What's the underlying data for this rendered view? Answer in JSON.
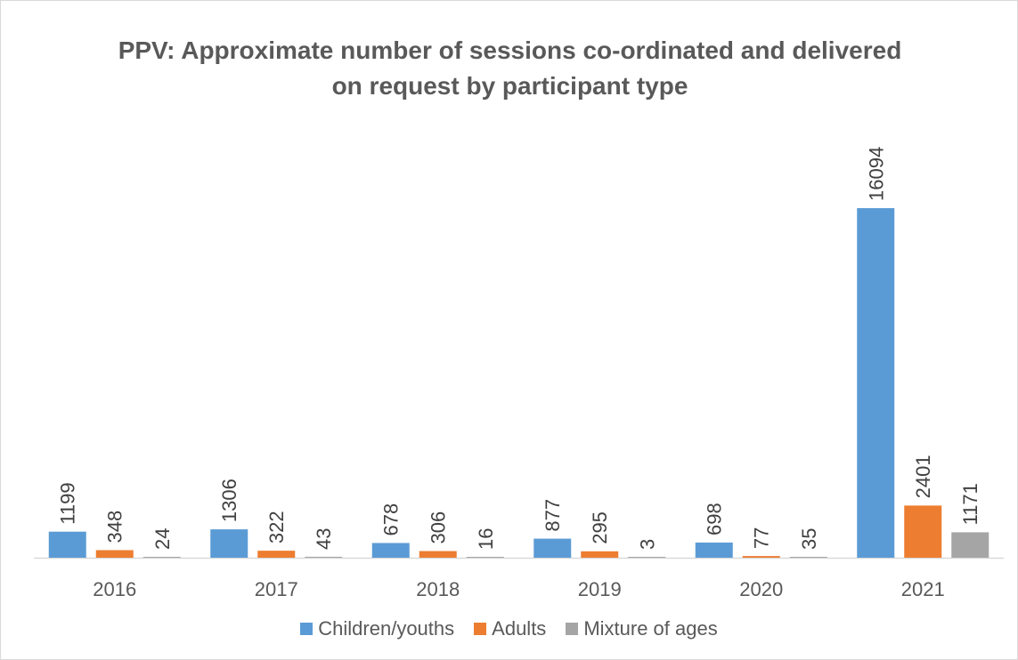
{
  "chart_data": {
    "type": "bar",
    "title_lines": [
      "PPV: Approximate number of sessions co-ordinated and delivered",
      "on request by participant type"
    ],
    "categories": [
      "2016",
      "2017",
      "2018",
      "2019",
      "2020",
      "2021"
    ],
    "series": [
      {
        "name": "Children/youths",
        "color": "#5b9bd5",
        "values": [
          1199,
          1306,
          678,
          877,
          698,
          16094
        ]
      },
      {
        "name": "Adults",
        "color": "#ed7d31",
        "values": [
          348,
          322,
          306,
          295,
          77,
          2401
        ]
      },
      {
        "name": "Mixture of ages",
        "color": "#a5a5a5",
        "values": [
          24,
          43,
          16,
          3,
          35,
          1171
        ]
      }
    ],
    "ylim": [
      0,
      16094
    ],
    "grid": false,
    "data_labels": true,
    "legend_position": "bottom"
  }
}
